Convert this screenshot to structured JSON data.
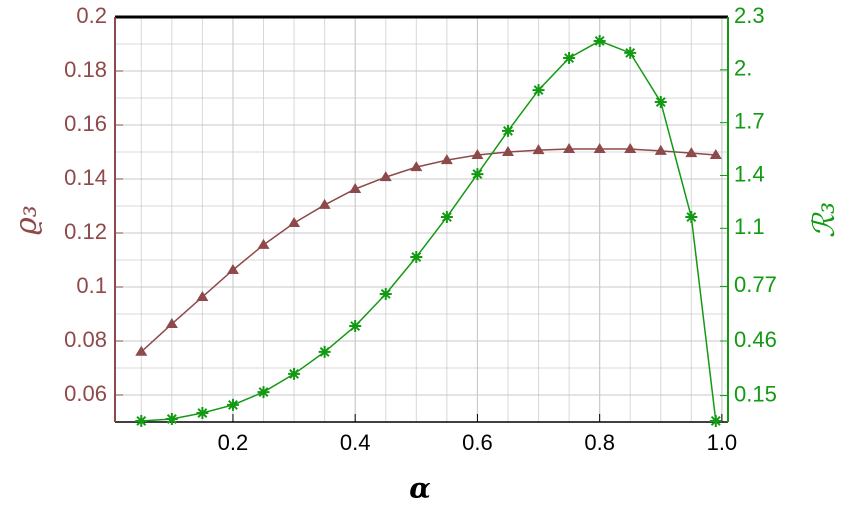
{
  "chart_data": {
    "type": "line",
    "x": [
      0.05,
      0.1,
      0.15,
      0.2,
      0.25,
      0.3,
      0.35,
      0.4,
      0.45,
      0.5,
      0.55,
      0.6,
      0.65,
      0.7,
      0.75,
      0.8,
      0.85,
      0.9,
      0.95,
      0.99
    ],
    "x_label": "α",
    "y_label": "ϱ₃",
    "y2_label": "ℛ₃",
    "series": [
      {
        "name": "ϱ₃",
        "color": "#8e4a4a",
        "marker": "triangle",
        "values": [
          0.076,
          0.0863,
          0.0963,
          0.1063,
          0.1156,
          0.1237,
          0.1304,
          0.1363,
          0.1407,
          0.1444,
          0.147,
          0.1489,
          0.15,
          0.1507,
          0.1511,
          0.1511,
          0.1511,
          0.1504,
          0.1496,
          0.1489
        ]
      },
      {
        "name": "ℛ₃",
        "color": "#139a13",
        "marker": "star",
        "axis": "y2",
        "values": [
          0.006,
          0.017,
          0.051,
          0.097,
          0.17,
          0.273,
          0.398,
          0.545,
          0.727,
          0.937,
          1.164,
          1.408,
          1.653,
          1.885,
          2.067,
          2.164,
          2.096,
          1.817,
          1.164,
          0.006
        ]
      }
    ],
    "xlim": [
      0.007,
      1.01
    ],
    "xticks": [
      0.2,
      0.4,
      0.6,
      0.8,
      {
        "value": 1,
        "label": "1.0"
      }
    ],
    "ylim": [
      0.05,
      0.2
    ],
    "yticks": [
      0.06,
      0.08,
      0.1,
      0.12,
      0.14,
      0.16,
      0.18,
      0.2
    ],
    "y2lim": [
      0,
      2.3
    ],
    "y2ticks": [
      0.15,
      0.46,
      0.77,
      1.1,
      1.4,
      1.7,
      {
        "value": 2,
        "label": "2."
      },
      2.3
    ],
    "grid": true
  }
}
